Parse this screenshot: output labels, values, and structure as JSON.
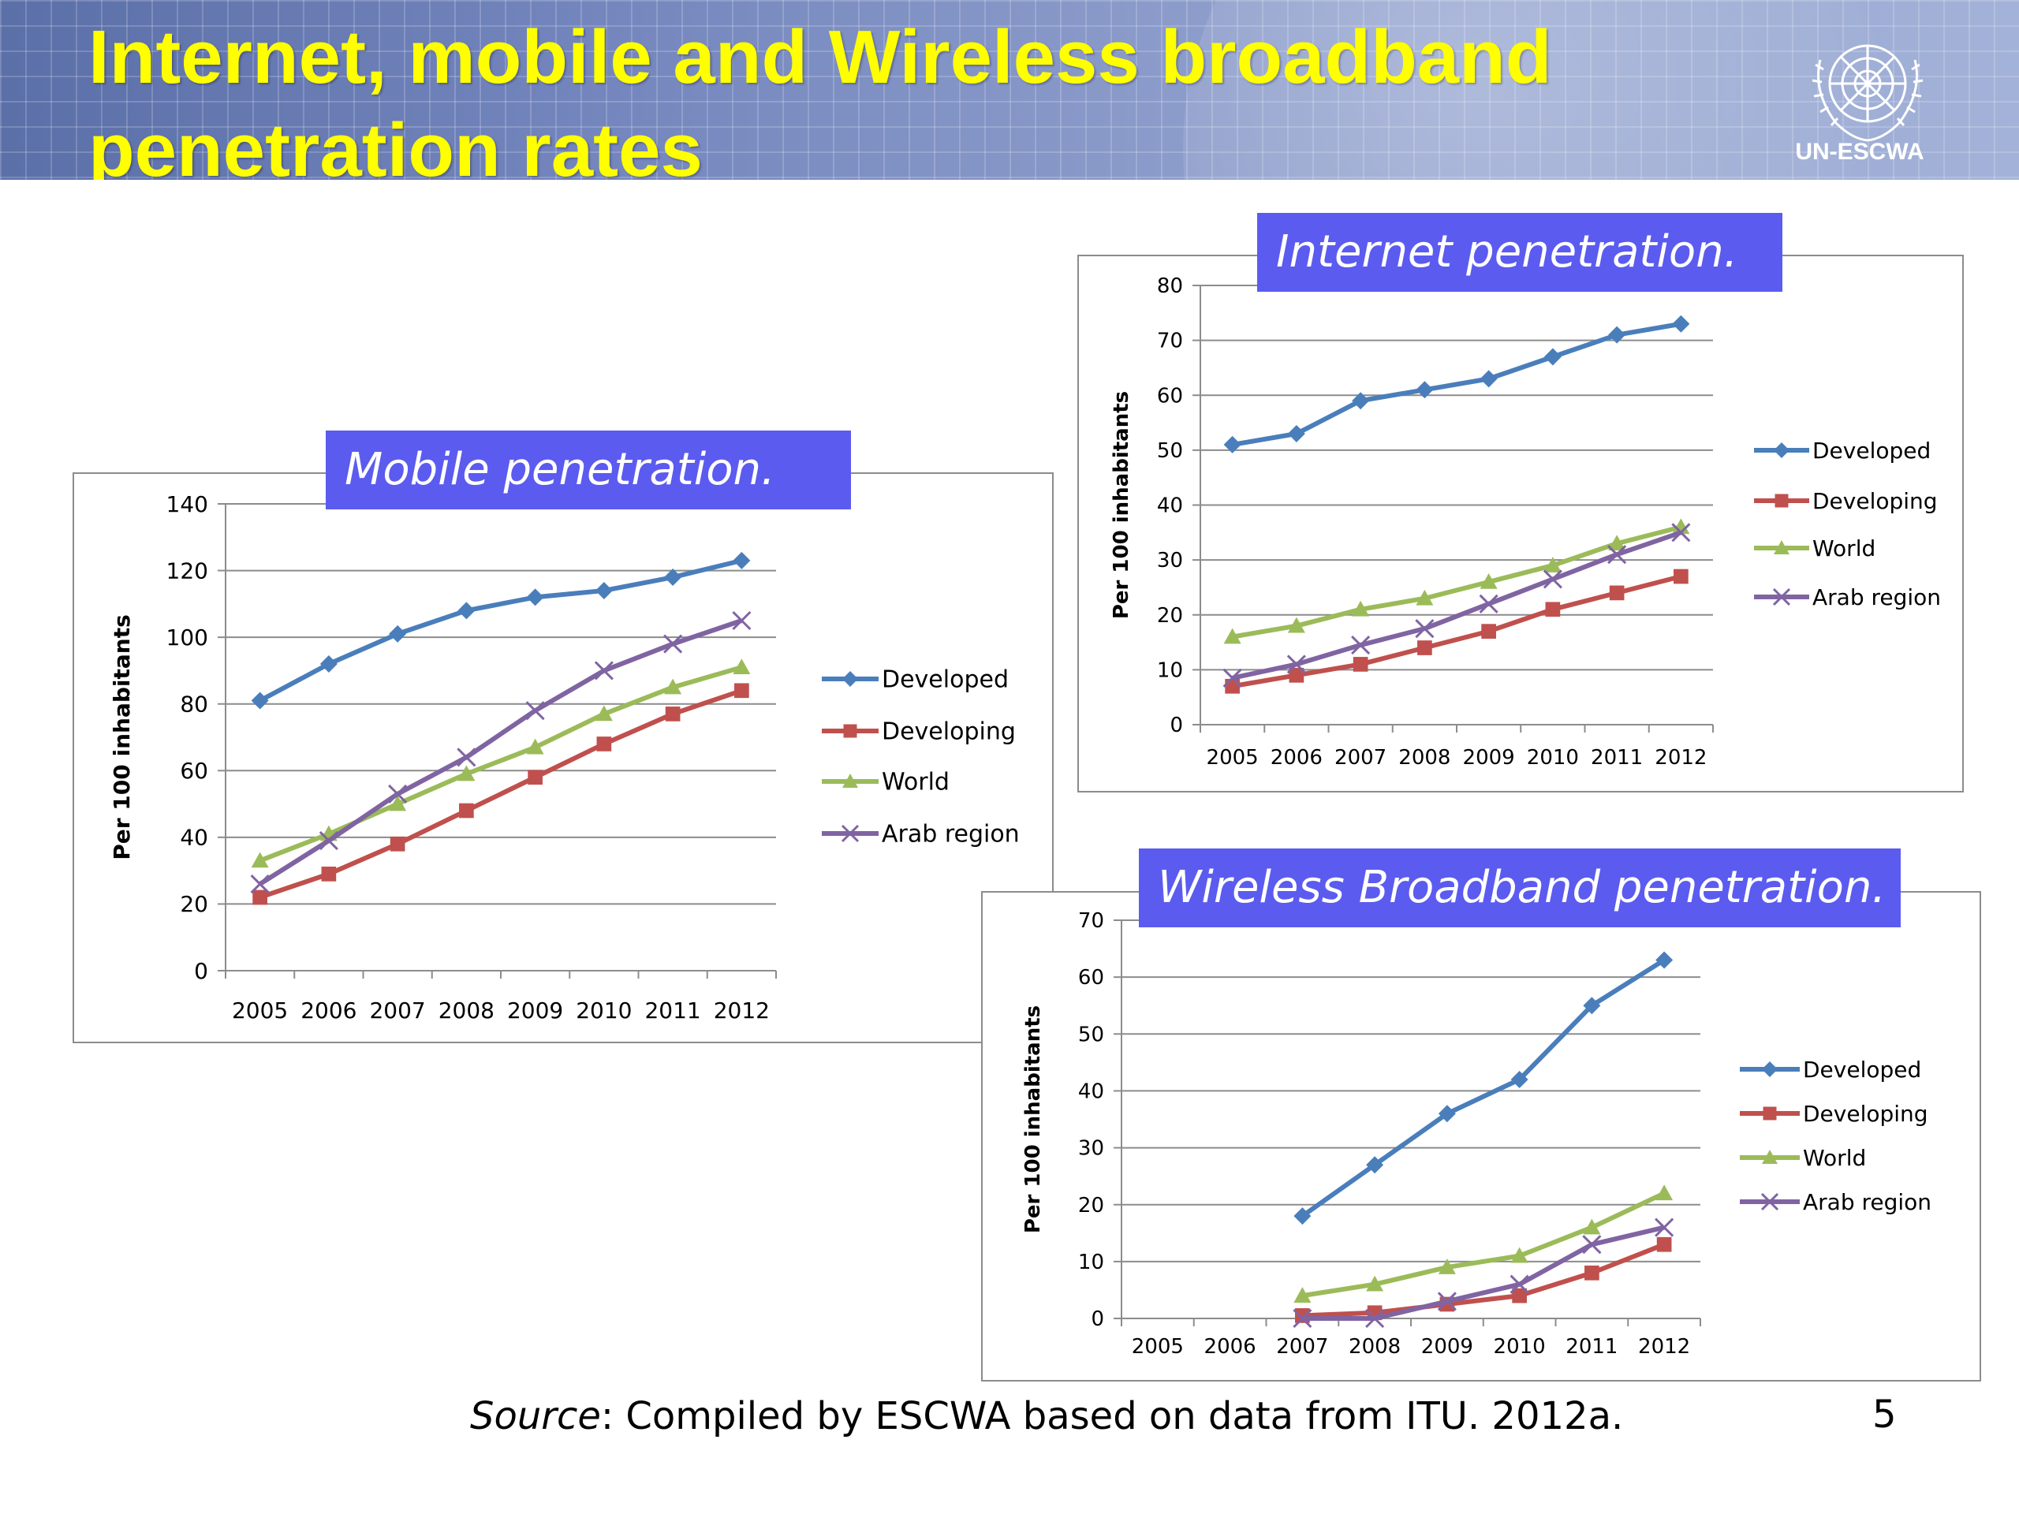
{
  "slide": {
    "title_line1": "Internet, mobile and Wireless broadband",
    "title_line2": "penetration rates",
    "logo_text": "UN-ESCWA",
    "source_label": "Source",
    "source_text": ": Compiled by ESCWA based on data from ITU. 2012a.",
    "page_number": "5"
  },
  "colors": {
    "Developed": "#4a7ebb",
    "Developing": "#c0504d",
    "World": "#9bbb59",
    "Arab region": "#8064a2",
    "title_box": "#5b5bf0"
  },
  "chart_data": [
    {
      "id": "mobile",
      "type": "line",
      "title": "Mobile penetration.",
      "ylabel": "Per 100 inhabitants",
      "xlabel": "",
      "categories": [
        "2005",
        "2006",
        "2007",
        "2008",
        "2009",
        "2010",
        "2011",
        "2012"
      ],
      "ylim": [
        0,
        140
      ],
      "yticks": [
        0,
        20,
        40,
        60,
        80,
        100,
        120,
        140
      ],
      "grid": true,
      "legend": "right",
      "series": [
        {
          "name": "Developed",
          "marker": "diamond",
          "values": [
            81,
            92,
            101,
            108,
            112,
            114,
            118,
            123
          ]
        },
        {
          "name": "Developing",
          "marker": "square",
          "values": [
            22,
            29,
            38,
            48,
            58,
            68,
            77,
            84
          ]
        },
        {
          "name": "World",
          "marker": "triangle",
          "values": [
            33,
            41,
            50,
            59,
            67,
            77,
            85,
            91
          ]
        },
        {
          "name": "Arab region",
          "marker": "x",
          "values": [
            26,
            39,
            53,
            64,
            78,
            90,
            98,
            105
          ]
        }
      ]
    },
    {
      "id": "internet",
      "type": "line",
      "title": "Internet penetration.",
      "ylabel": "Per 100 inhabitants",
      "xlabel": "",
      "categories": [
        "2005",
        "2006",
        "2007",
        "2008",
        "2009",
        "2010",
        "2011",
        "2012"
      ],
      "ylim": [
        0,
        80
      ],
      "yticks": [
        0,
        10,
        20,
        30,
        40,
        50,
        60,
        70,
        80
      ],
      "grid": true,
      "legend": "right",
      "series": [
        {
          "name": "Developed",
          "marker": "diamond",
          "values": [
            51,
            53,
            59,
            61,
            63,
            67,
            71,
            73
          ]
        },
        {
          "name": "Developing",
          "marker": "square",
          "values": [
            7,
            9,
            11,
            14,
            17,
            21,
            24,
            27
          ]
        },
        {
          "name": "World",
          "marker": "triangle",
          "values": [
            16,
            18,
            21,
            23,
            26,
            29,
            33,
            36
          ]
        },
        {
          "name": "Arab region",
          "marker": "x",
          "values": [
            8.5,
            11,
            14.5,
            17.5,
            22,
            26.5,
            31,
            35
          ]
        }
      ]
    },
    {
      "id": "wireless",
      "type": "line",
      "title": "Wireless Broadband penetration.",
      "ylabel": "Per 100 inhabitants",
      "xlabel": "",
      "categories": [
        "2005",
        "2006",
        "2007",
        "2008",
        "2009",
        "2010",
        "2011",
        "2012"
      ],
      "ylim": [
        0,
        70
      ],
      "yticks": [
        0,
        10,
        20,
        30,
        40,
        50,
        60,
        70
      ],
      "grid": true,
      "legend": "right",
      "series": [
        {
          "name": "Developed",
          "marker": "diamond",
          "values": [
            null,
            null,
            18,
            27,
            36,
            42,
            55,
            63
          ]
        },
        {
          "name": "Developing",
          "marker": "square",
          "values": [
            null,
            null,
            0.5,
            1,
            2.5,
            4,
            8,
            13
          ]
        },
        {
          "name": "World",
          "marker": "triangle",
          "values": [
            null,
            null,
            4,
            6,
            9,
            11,
            16,
            22
          ]
        },
        {
          "name": "Arab region",
          "marker": "x",
          "values": [
            null,
            null,
            0,
            0,
            3,
            6,
            13,
            16
          ]
        }
      ]
    }
  ]
}
